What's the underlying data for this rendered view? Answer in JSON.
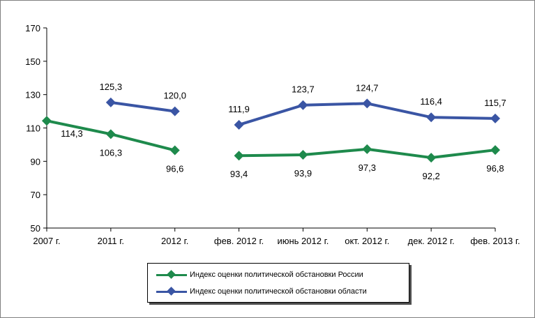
{
  "chart_data": {
    "type": "line",
    "categories": [
      "2007 г.",
      "2011 г.",
      "2012 г.",
      "фев. 2012 г.",
      "июнь 2012 г.",
      "окт. 2012 г.",
      "дек. 2012 г.",
      "фев. 2013 г."
    ],
    "ylim": [
      50,
      170
    ],
    "yticks": [
      "50",
      "70",
      "90",
      "110",
      "130",
      "150",
      "170"
    ],
    "grid": false,
    "legend_position": "bottom-center",
    "series": [
      {
        "name": "Индекс оценки политической обстановки России",
        "color": "#1e8a4c",
        "segments": [
          [
            {
              "i": 0,
              "value": 114.3,
              "label": "114,3"
            },
            {
              "i": 1,
              "value": 106.3,
              "label": "106,3"
            },
            {
              "i": 2,
              "value": 96.6,
              "label": "96,6"
            }
          ],
          [
            {
              "i": 3,
              "value": 93.4,
              "label": "93,4"
            },
            {
              "i": 4,
              "value": 93.9,
              "label": "93,9"
            },
            {
              "i": 5,
              "value": 97.3,
              "label": "97,3"
            },
            {
              "i": 6,
              "value": 92.2,
              "label": "92,2"
            },
            {
              "i": 7,
              "value": 96.8,
              "label": "96,8"
            }
          ]
        ]
      },
      {
        "name": "Индекс оценки политической обстановки области",
        "color": "#3a55a4",
        "segments": [
          [
            {
              "i": 1,
              "value": 125.3,
              "label": "125,3"
            },
            {
              "i": 2,
              "value": 120.0,
              "label": "120,0"
            }
          ],
          [
            {
              "i": 3,
              "value": 111.9,
              "label": "111,9"
            },
            {
              "i": 4,
              "value": 123.7,
              "label": "123,7"
            },
            {
              "i": 5,
              "value": 124.7,
              "label": "124,7"
            },
            {
              "i": 6,
              "value": 116.4,
              "label": "116,4"
            },
            {
              "i": 7,
              "value": 115.7,
              "label": "115,7"
            }
          ]
        ]
      }
    ]
  }
}
